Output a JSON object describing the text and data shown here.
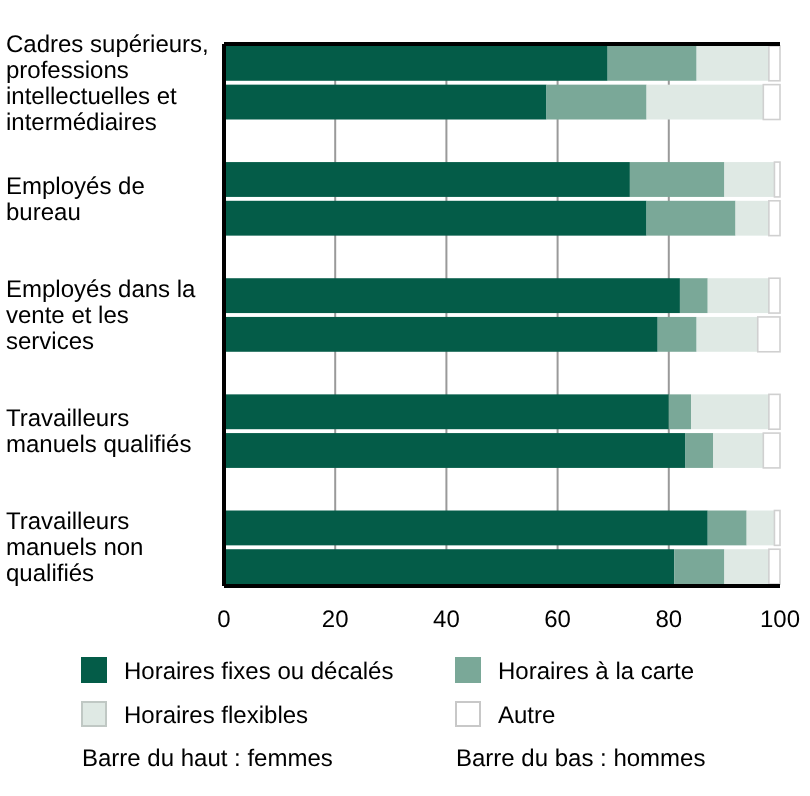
{
  "chart_data": {
    "type": "bar",
    "orientation": "horizontal",
    "stacked": true,
    "categories": [
      "Cadres supérieurs, professions intellectuelles et intermédiaires",
      null,
      null,
      "Employés de bureau",
      null,
      null,
      "Employés dans la vente et les services",
      null,
      null,
      "Travailleurs manuels qualifiés",
      null,
      null,
      "Travailleurs manuels non qualifiés",
      null
    ],
    "series": [
      {
        "name": "Horaires fixes ou décalés",
        "color": "#045c48",
        "values": [
          69,
          58,
          null,
          73,
          76,
          null,
          82,
          78,
          null,
          80,
          83,
          null,
          87,
          81
        ]
      },
      {
        "name": "Horaires à la carte",
        "color": "#7aa898",
        "values": [
          16,
          18,
          null,
          17,
          16,
          null,
          5,
          7,
          null,
          4,
          5,
          null,
          7,
          9
        ]
      },
      {
        "name": "Horaires flexibles",
        "color": "#dfe9e4",
        "values": [
          13,
          21,
          null,
          9,
          6,
          null,
          11,
          11,
          null,
          14,
          9,
          null,
          5,
          8
        ]
      },
      {
        "name": "Autre",
        "color": "#ffffff",
        "values": [
          2,
          3,
          null,
          1,
          2,
          null,
          2,
          4,
          null,
          2,
          3,
          null,
          1,
          2
        ]
      }
    ],
    "xlim": [
      0,
      100
    ],
    "xticks": [
      0,
      20,
      40,
      60,
      80,
      100
    ],
    "grid": "x",
    "legend": "bottom",
    "annotations": [
      "Barre du haut : femmes",
      "Barre du bas : hommes"
    ]
  }
}
